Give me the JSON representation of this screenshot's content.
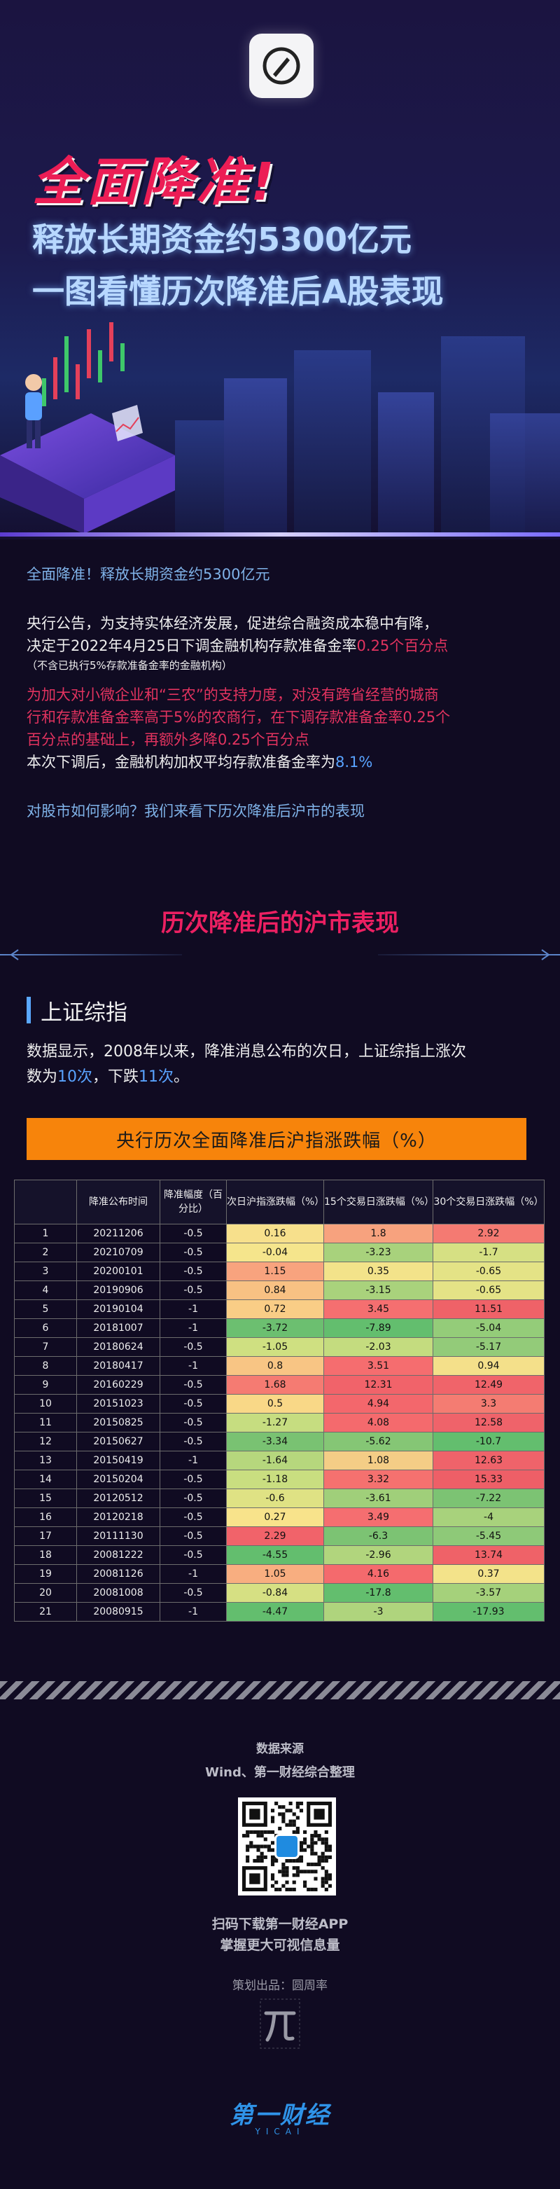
{
  "hero": {
    "title": "全面降准!",
    "subtitle_line1": "释放长期资金约5300亿元",
    "subtitle_line2": "一图看懂历次降准后A股表现"
  },
  "intro": {
    "headline": "全面降准！释放长期资金约5300亿元",
    "para1_a": "央行公告，为支持实体经济发展，促进综合融资成本稳中有降，",
    "para1_b": "决定于2022年4月25日下调金融机构存款准备金率",
    "para1_c": "0.25个百分点",
    "note": "（不含已执行5%存款准备金率的金融机构）",
    "para2_l1": "为加大对小微企业和“三农”的支持力度，对没有跨省经营的城商",
    "para2_l2": "行和存款准备金率高于5%的农商行，在下调存款准备金率0.25个",
    "para2_l3": "百分点的基础上，再额外多降0.25个百分点",
    "para3_a": "本次下调后，金融机构加权平均存款准备金率为",
    "para3_b": "8.1%",
    "question": "对股市如何影响？我们来看下历次降准后沪市的表现"
  },
  "section": {
    "title": "历次降准后的沪市表现",
    "sub_title": "上证综指",
    "desc_a": "数据显示，2008年以来，降准消息公布的次日，上证综指上涨次",
    "desc_b": "数为",
    "up_count": "10次",
    "desc_c": "，下跌",
    "down_count": "11次",
    "desc_d": "。",
    "table_title": "央行历次全面降准后沪指涨跌幅（%）"
  },
  "table": {
    "headers": [
      "",
      "降准公布时间",
      "降准幅度（百分比）",
      "次日沪指涨跌幅（%）",
      "15个交易日涨跌幅（%）",
      "30个交易日涨跌幅（%）"
    ],
    "rows": [
      {
        "idx": "1",
        "date": "20211206",
        "cut": "-0.5",
        "v1": "0.16",
        "v2": "1.8",
        "v3": "2.92",
        "c1": "#f7e08c",
        "c2": "#f7a27e",
        "c3": "#f47a72"
      },
      {
        "idx": "2",
        "date": "20210709",
        "cut": "-0.5",
        "v1": "-0.04",
        "v2": "-3.23",
        "v3": "-1.7",
        "c1": "#f5e58c",
        "c2": "#a8d27c",
        "c3": "#d6e083"
      },
      {
        "idx": "3",
        "date": "20200101",
        "cut": "-0.5",
        "v1": "1.15",
        "v2": "0.35",
        "v3": "-0.65",
        "c1": "#f8a37e",
        "c2": "#f3e38a",
        "c3": "#e4e386"
      },
      {
        "idx": "4",
        "date": "20190906",
        "cut": "-0.5",
        "v1": "0.84",
        "v2": "-3.15",
        "v3": "-0.65",
        "c1": "#f8c183",
        "c2": "#a9d27c",
        "c3": "#e4e386"
      },
      {
        "idx": "5",
        "date": "20190104",
        "cut": "-1",
        "v1": "0.72",
        "v2": "3.45",
        "v3": "11.51",
        "c1": "#f9cd86",
        "c2": "#f56f70",
        "c3": "#ef6268"
      },
      {
        "idx": "6",
        "date": "20181007",
        "cut": "-1",
        "v1": "-3.72",
        "v2": "-7.89",
        "v3": "-5.04",
        "c1": "#6cbf70",
        "c2": "#63be6e",
        "c3": "#94cc79"
      },
      {
        "idx": "7",
        "date": "20180624",
        "cut": "-0.5",
        "v1": "-1.05",
        "v2": "-2.03",
        "v3": "-5.17",
        "c1": "#cfe081",
        "c2": "#c4dc7f",
        "c3": "#93cb79"
      },
      {
        "idx": "8",
        "date": "20180417",
        "cut": "-1",
        "v1": "0.8",
        "v2": "3.51",
        "v3": "0.94",
        "c1": "#f8c584",
        "c2": "#f56d6f",
        "c3": "#f4e08a"
      },
      {
        "idx": "9",
        "date": "20160229",
        "cut": "-0.5",
        "v1": "1.68",
        "v2": "12.31",
        "v3": "12.49",
        "c1": "#f57b72",
        "c2": "#f1636a",
        "c3": "#f0646a"
      },
      {
        "idx": "10",
        "date": "20151023",
        "cut": "-0.5",
        "v1": "0.5",
        "v2": "4.94",
        "v3": "3.3",
        "c1": "#f9d887",
        "c2": "#f3676c",
        "c3": "#f47c72"
      },
      {
        "idx": "11",
        "date": "20150825",
        "cut": "-0.5",
        "v1": "-1.27",
        "v2": "4.08",
        "v3": "12.58",
        "c1": "#c6dd80",
        "c2": "#f46a6d",
        "c3": "#ef636a"
      },
      {
        "idx": "12",
        "date": "20150627",
        "cut": "-0.5",
        "v1": "-3.34",
        "v2": "-5.62",
        "v3": "-10.7",
        "c1": "#79c272",
        "c2": "#85c675",
        "c3": "#63be6e"
      },
      {
        "idx": "13",
        "date": "20150419",
        "cut": "-1",
        "v1": "-1.64",
        "v2": "1.08",
        "v3": "12.63",
        "c1": "#b6d77d",
        "c2": "#f4cd86",
        "c3": "#ef636a"
      },
      {
        "idx": "14",
        "date": "20150204",
        "cut": "-0.5",
        "v1": "-1.18",
        "v2": "3.32",
        "v3": "15.33",
        "c1": "#c9de80",
        "c2": "#f5716f",
        "c3": "#ee5f67"
      },
      {
        "idx": "15",
        "date": "20120512",
        "cut": "-0.5",
        "v1": "-0.6",
        "v2": "-3.61",
        "v3": "-7.22",
        "c1": "#dfe284",
        "c2": "#a0cf7a",
        "c3": "#7cc373"
      },
      {
        "idx": "16",
        "date": "20120218",
        "cut": "-0.5",
        "v1": "0.27",
        "v2": "3.49",
        "v3": "-4",
        "c1": "#f8e38b",
        "c2": "#f56e70",
        "c3": "#a8d27c"
      },
      {
        "idx": "17",
        "date": "20111130",
        "cut": "-0.5",
        "v1": "2.29",
        "v2": "-6.3",
        "v3": "-5.45",
        "c1": "#f1636a",
        "c2": "#7cc373",
        "c3": "#8ec978"
      },
      {
        "idx": "18",
        "date": "20081222",
        "cut": "-0.5",
        "v1": "-4.55",
        "v2": "-2.96",
        "v3": "13.74",
        "c1": "#63be6e",
        "c2": "#b1d57d",
        "c3": "#ef6268"
      },
      {
        "idx": "19",
        "date": "20081126",
        "cut": "-1",
        "v1": "1.05",
        "v2": "4.16",
        "v3": "0.37",
        "c1": "#f8ae80",
        "c2": "#f46a6d",
        "c3": "#f3e38a"
      },
      {
        "idx": "20",
        "date": "20081008",
        "cut": "-0.5",
        "v1": "-0.84",
        "v2": "-17.8",
        "v3": "-3.57",
        "c1": "#d6e083",
        "c2": "#63be6e",
        "c3": "#a5d17b"
      },
      {
        "idx": "21",
        "date": "20080915",
        "cut": "-1",
        "v1": "-4.47",
        "v2": "-3",
        "v3": "-17.93",
        "c1": "#63be6e",
        "c2": "#afd47d",
        "c3": "#63be6e"
      }
    ]
  },
  "footer": {
    "source_title": "数据来源",
    "source": "Wind、第一财经综合整理",
    "scan_line1": "扫码下载第一财经APP",
    "scan_line2": "掌握更大可视信息量",
    "planner": "策划出品：圆周率",
    "brand": "第一财经",
    "brand_sub": "YICAI"
  }
}
